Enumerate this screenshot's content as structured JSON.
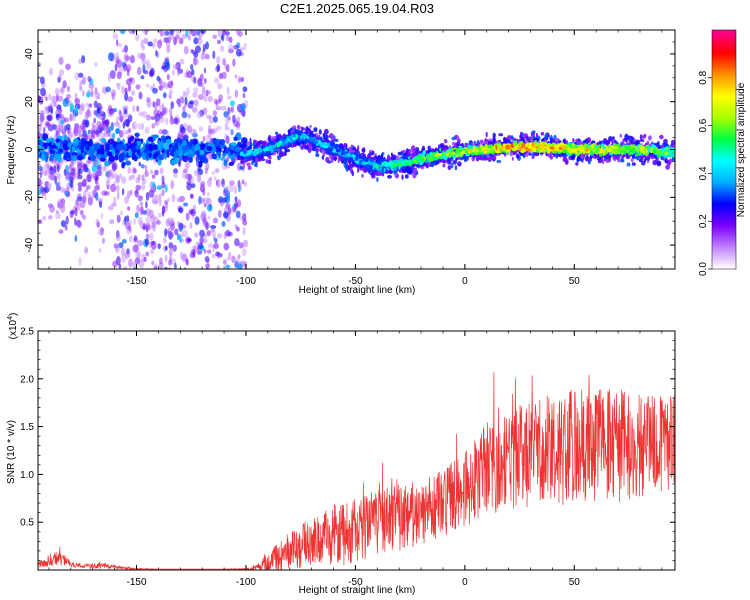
{
  "title": "C2E1.2025.065.19.04.R03",
  "chart_data": [
    {
      "type": "heatmap",
      "xlabel": "Height of straight line (km)",
      "ylabel": "Frequency (Hz)",
      "xlim": [
        -195,
        96
      ],
      "ylim": [
        -50,
        50
      ],
      "x_ticks": [
        "-150",
        "-100",
        "-50",
        "0",
        "50"
      ],
      "x_tick_values": [
        -150,
        -100,
        -50,
        0,
        50
      ],
      "y_ticks": [
        "-40",
        "-20",
        "0",
        "20",
        "40"
      ],
      "y_tick_values": [
        -40,
        -20,
        0,
        20,
        40
      ],
      "colorbar": {
        "label": "Normalized spectral amplitude",
        "range": [
          0,
          1
        ],
        "ticks": [
          "0.0",
          "0.2",
          "0.4",
          "0.6",
          "0.8"
        ],
        "tick_values": [
          0.0,
          0.2,
          0.4,
          0.6,
          0.8
        ],
        "colors": [
          "#ffffff",
          "#c080ff",
          "#7a00ff",
          "#0000ff",
          "#00b0ff",
          "#00ffff",
          "#00ff40",
          "#aaff00",
          "#ffff00",
          "#ff9000",
          "#ff0000",
          "#ff0090"
        ]
      },
      "ridge": {
        "x": [
          -100,
          -90,
          -80,
          -75,
          -70,
          -60,
          -50,
          -40,
          -30,
          -20,
          -10,
          0,
          10,
          20,
          30,
          40,
          50,
          60,
          70,
          80,
          90,
          96
        ],
        "y": [
          -2,
          0,
          4,
          6,
          4,
          0,
          -4,
          -7,
          -6,
          -4,
          -2,
          -1,
          0,
          1,
          1,
          1,
          0,
          0,
          0,
          0,
          -1,
          -1
        ],
        "amplitude": [
          0.55,
          0.55,
          0.5,
          0.55,
          0.5,
          0.5,
          0.55,
          0.6,
          0.65,
          0.7,
          0.75,
          0.8,
          0.85,
          0.95,
          0.95,
          0.9,
          0.85,
          0.85,
          0.8,
          0.8,
          0.75,
          0.7
        ]
      },
      "scatter_region": {
        "x_range": [
          -195,
          -100
        ],
        "y_range": [
          -50,
          50
        ]
      }
    },
    {
      "type": "line",
      "xlabel": "Height of straight line (km)",
      "ylabel": "SNR (10 * v/v)",
      "y_multiplier": "(x10",
      "y_multiplier_exp": "4",
      "y_multiplier_close": ")",
      "xlim": [
        -195,
        96
      ],
      "ylim": [
        0,
        2.5
      ],
      "x_ticks": [
        "-150",
        "-100",
        "-50",
        "0",
        "50"
      ],
      "x_tick_values": [
        -150,
        -100,
        -50,
        0,
        50
      ],
      "y_ticks": [
        "0.5",
        "1.0",
        "1.5",
        "2.0",
        "2.5"
      ],
      "y_tick_values": [
        0.5,
        1.0,
        1.5,
        2.0,
        2.5
      ],
      "color": "#ee3333",
      "envelope": {
        "x": [
          -195,
          -190,
          -185,
          -180,
          -175,
          -170,
          -165,
          -160,
          -150,
          -140,
          -130,
          -120,
          -110,
          -100,
          -95,
          -90,
          -80,
          -70,
          -60,
          -50,
          -40,
          -30,
          -20,
          -10,
          0,
          5,
          10,
          15,
          20,
          30,
          40,
          50,
          60,
          70,
          80,
          90,
          96
        ],
        "mean": [
          0.05,
          0.1,
          0.15,
          0.06,
          0.04,
          0.04,
          0.05,
          0.03,
          0.01,
          0.01,
          0.01,
          0.01,
          0.01,
          0.01,
          0.02,
          0.08,
          0.2,
          0.3,
          0.35,
          0.4,
          0.5,
          0.55,
          0.6,
          0.7,
          0.85,
          0.95,
          1.05,
          1.1,
          1.15,
          1.2,
          1.25,
          1.3,
          1.3,
          1.3,
          1.3,
          1.3,
          1.3
        ],
        "spread": [
          0.04,
          0.06,
          0.1,
          0.03,
          0.02,
          0.03,
          0.03,
          0.02,
          0.01,
          0.0,
          0.0,
          0.0,
          0.0,
          0.01,
          0.03,
          0.1,
          0.2,
          0.25,
          0.3,
          0.35,
          0.35,
          0.35,
          0.35,
          0.35,
          0.4,
          0.45,
          0.5,
          0.5,
          0.55,
          0.55,
          0.6,
          0.6,
          0.6,
          0.6,
          0.55,
          0.55,
          0.55
        ]
      }
    }
  ]
}
